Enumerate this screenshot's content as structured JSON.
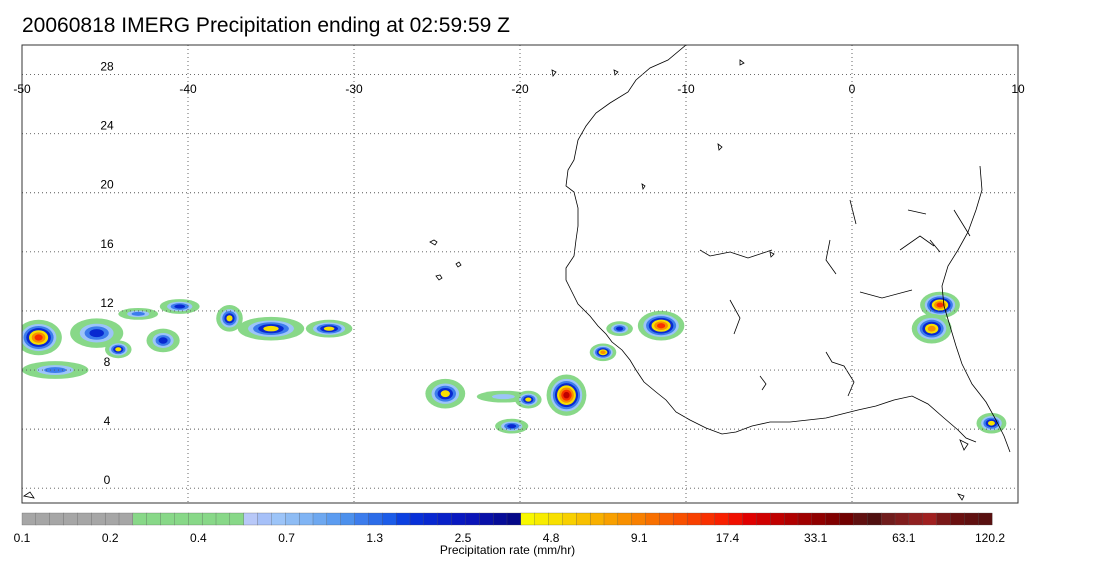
{
  "title": "20060818 IMERG Precipitation ending at 02:59:59 Z",
  "map": {
    "lon_range": [
      -50,
      10
    ],
    "lat_range": [
      -1,
      30
    ],
    "lon_ticks": [
      {
        "value": -50,
        "label": "-50"
      },
      {
        "value": -40,
        "label": "-40"
      },
      {
        "value": -30,
        "label": "-30"
      },
      {
        "value": -20,
        "label": "-20"
      },
      {
        "value": -10,
        "label": "-10"
      },
      {
        "value": 0,
        "label": "0"
      },
      {
        "value": 10,
        "label": "10"
      }
    ],
    "lat_ticks": [
      {
        "value": 0,
        "label": "0"
      },
      {
        "value": 4,
        "label": "4"
      },
      {
        "value": 8,
        "label": "8"
      },
      {
        "value": 12,
        "label": "12"
      },
      {
        "value": 16,
        "label": "16"
      },
      {
        "value": 20,
        "label": "20"
      },
      {
        "value": 24,
        "label": "24"
      },
      {
        "value": 28,
        "label": "28"
      }
    ],
    "grid": "dotted",
    "coastline_color": "#000000"
  },
  "colorbar": {
    "title": "Precipitation rate (mm/hr)",
    "colors": [
      "#a6a6a6",
      "#a6a6a6",
      "#a6a6a6",
      "#a6a6a6",
      "#a6a6a6",
      "#a6a6a6",
      "#a6a6a6",
      "#a6a6a6",
      "#88d888",
      "#88d888",
      "#88d888",
      "#88d888",
      "#88d888",
      "#88d888",
      "#88d888",
      "#88d888",
      "#b8c8f8",
      "#a6c0f8",
      "#9cc4f8",
      "#8ebcf4",
      "#80b4f4",
      "#6ea8f0",
      "#5c9cf0",
      "#4c90ec",
      "#3c7cec",
      "#2c6ce8",
      "#1c5ce8",
      "#0c40e0",
      "#0830d8",
      "#0828d0",
      "#0820c8",
      "#0818c0",
      "#0a14b8",
      "#0810a8",
      "#060c98",
      "#040888",
      "#f8f800",
      "#f8ec00",
      "#f8e000",
      "#f8d000",
      "#f8c000",
      "#f8b000",
      "#f8a000",
      "#f89000",
      "#f88000",
      "#f87000",
      "#f86000",
      "#f85000",
      "#f84000",
      "#f83000",
      "#f82000",
      "#f01000",
      "#e00000",
      "#d00000",
      "#c00000",
      "#b00000",
      "#a00000",
      "#900000",
      "#800000",
      "#700000",
      "#601010",
      "#501010",
      "#701c1c",
      "#801c1c",
      "#902020",
      "#a02020",
      "#7a1818",
      "#6a1010",
      "#601010",
      "#581010"
    ],
    "labels": [
      {
        "index": 0,
        "text": "0.1"
      },
      {
        "index": 9,
        "text": "0.2"
      },
      {
        "index": 18,
        "text": "0.4"
      },
      {
        "index": 27,
        "text": "0.7"
      },
      {
        "index": 36,
        "text": "1.3"
      },
      {
        "index": 45,
        "text": "2.5"
      },
      {
        "index": 54,
        "text": "4.8"
      },
      {
        "index": 63,
        "text": "9.1"
      },
      {
        "index": 72,
        "text": "17.4"
      },
      {
        "index": 81,
        "text": "33.1"
      },
      {
        "index": 90,
        "text": "63.1"
      },
      {
        "index": 99,
        "text": "120.2"
      }
    ]
  },
  "precip_cells": [
    {
      "lon": -49.0,
      "lat": 10.2,
      "rate": 20,
      "rx": 1.4,
      "ry": 1.2
    },
    {
      "lon": -45.5,
      "lat": 10.5,
      "rate": 3,
      "rx": 1.6,
      "ry": 1.0
    },
    {
      "lon": -44.2,
      "lat": 9.4,
      "rate": 5,
      "rx": 0.8,
      "ry": 0.6
    },
    {
      "lon": -41.5,
      "lat": 10.0,
      "rate": 3,
      "rx": 1.0,
      "ry": 0.8
    },
    {
      "lon": -37.5,
      "lat": 11.5,
      "rate": 8,
      "rx": 0.8,
      "ry": 0.9
    },
    {
      "lon": -35.0,
      "lat": 10.8,
      "rate": 6,
      "rx": 2.0,
      "ry": 0.8
    },
    {
      "lon": -31.5,
      "lat": 10.8,
      "rate": 5,
      "rx": 1.4,
      "ry": 0.6
    },
    {
      "lon": -40.5,
      "lat": 12.3,
      "rate": 4,
      "rx": 1.2,
      "ry": 0.5
    },
    {
      "lon": -43.0,
      "lat": 11.8,
      "rate": 1.5,
      "rx": 1.2,
      "ry": 0.4
    },
    {
      "lon": -48.0,
      "lat": 8.0,
      "rate": 1.3,
      "rx": 2.0,
      "ry": 0.6
    },
    {
      "lon": -24.5,
      "lat": 6.4,
      "rate": 9,
      "rx": 1.2,
      "ry": 1.0
    },
    {
      "lon": -21.0,
      "lat": 6.2,
      "rate": 1.0,
      "rx": 1.6,
      "ry": 0.4
    },
    {
      "lon": -17.2,
      "lat": 6.3,
      "rate": 60,
      "rx": 1.2,
      "ry": 1.4
    },
    {
      "lon": -19.5,
      "lat": 6.0,
      "rate": 8,
      "rx": 0.8,
      "ry": 0.6
    },
    {
      "lon": -20.5,
      "lat": 4.2,
      "rate": 4,
      "rx": 1.0,
      "ry": 0.5
    },
    {
      "lon": -15.0,
      "lat": 9.2,
      "rate": 10,
      "rx": 0.8,
      "ry": 0.6
    },
    {
      "lon": -11.5,
      "lat": 11.0,
      "rate": 30,
      "rx": 1.4,
      "ry": 1.0
    },
    {
      "lon": -14.0,
      "lat": 10.8,
      "rate": 3,
      "rx": 0.8,
      "ry": 0.5
    },
    {
      "lon": 5.3,
      "lat": 12.4,
      "rate": 25,
      "rx": 1.2,
      "ry": 0.9
    },
    {
      "lon": 4.8,
      "lat": 10.8,
      "rate": 12,
      "rx": 1.2,
      "ry": 1.0
    },
    {
      "lon": 8.4,
      "lat": 4.4,
      "rate": 8,
      "rx": 0.9,
      "ry": 0.7
    }
  ]
}
